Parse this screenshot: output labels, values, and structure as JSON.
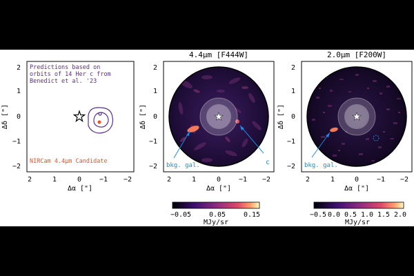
{
  "panels": [
    {
      "id": "left",
      "ylabel": "Δδ [\"]",
      "xlabel": "Δα [\"]",
      "yticks": [
        "2",
        "1",
        "0",
        "−1",
        "−2"
      ],
      "xticks": [
        "2",
        "1",
        "0",
        "−1",
        "−2"
      ],
      "annotation_lines": [
        "Predictions based on",
        "orbits of 14 Her c from",
        "Benedict et al. '23"
      ],
      "candidate_label": "NIRCam 4.4μm Candidate",
      "colors": {
        "prediction": "#5a2d91",
        "candidate": "#e8542a"
      }
    },
    {
      "id": "middle",
      "title": "4.4μm [F444W]",
      "ylabel": "Δδ [\"]",
      "xlabel": "Δα [\"]",
      "yticks": [
        "2",
        "1",
        "0",
        "−1",
        "−2"
      ],
      "xticks": [
        "2",
        "1",
        "0",
        "−1",
        "−2"
      ],
      "labels": {
        "background_galaxy": "bkg. gal.",
        "planet": "c"
      },
      "colorbar": {
        "ticks": [
          "−0.05",
          "0.05",
          "0.15"
        ],
        "unit": "MJy/sr"
      },
      "colors": {
        "annotation": "#1e88e5"
      }
    },
    {
      "id": "right",
      "title": "2.0μm [F200W]",
      "ylabel": "Δδ [\"]",
      "xlabel": "Δα [\"]",
      "yticks": [
        "2",
        "1",
        "0",
        "−1",
        "−2"
      ],
      "xticks": [
        "2",
        "1",
        "0",
        "−1",
        "−2"
      ],
      "labels": {
        "background_galaxy": "bkg. gal."
      },
      "colorbar": {
        "ticks": [
          "−0.5",
          "0.0",
          "0.5",
          "1.0",
          "1.5",
          "2.0"
        ],
        "unit": "MJy/sr"
      },
      "colors": {
        "annotation": "#1e88e5"
      }
    }
  ]
}
